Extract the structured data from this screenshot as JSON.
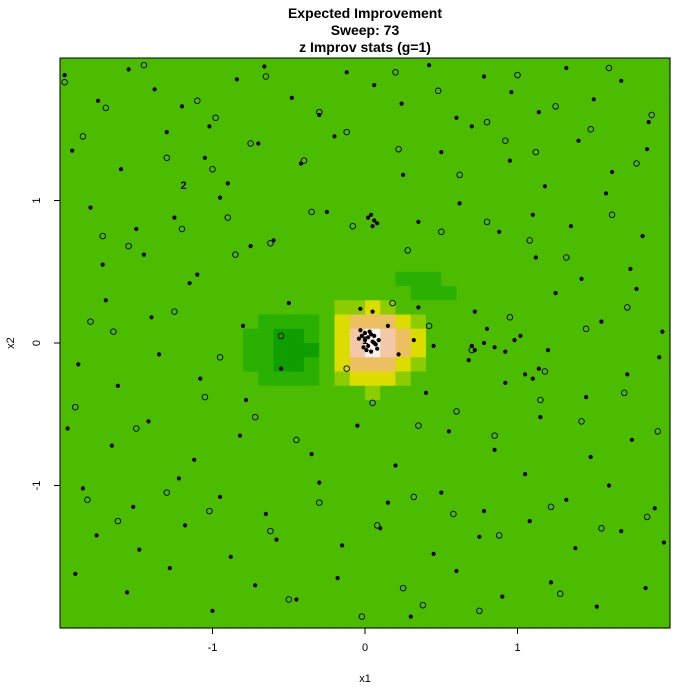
{
  "chart_data": {
    "type": "heatmap",
    "title": "Expected Improvement",
    "subtitle_lines": [
      "Sweep: 73",
      "z Improv stats (g=1)"
    ],
    "xlabel": "x1",
    "ylabel": "x2",
    "xlim": [
      -2,
      2
    ],
    "ylim": [
      -2,
      2
    ],
    "x_ticks": [
      -1,
      0,
      1
    ],
    "y_ticks": [
      -1,
      0,
      1
    ],
    "x_tick_labels": [
      "-1",
      "0",
      "1"
    ],
    "y_tick_labels": [
      "-1",
      "0",
      "1"
    ],
    "grid": false,
    "legend": "none",
    "colors": {
      "background_level": "#4cbc00",
      "low_level": "#0e9e00",
      "mid_low": "#2ab000",
      "mid": "#8ccc00",
      "yellow": "#dcdc00",
      "orange": "#ecc060",
      "peach": "#f2c8a8",
      "peak": "#fbf2ee"
    },
    "surface_features": [
      {
        "kind": "peak",
        "center": [
          0.05,
          0.0
        ],
        "spread": [
          0.18,
          0.16
        ],
        "level": 1.0
      },
      {
        "kind": "dip",
        "center": [
          -0.45,
          -0.05
        ],
        "spread": [
          0.2,
          0.15
        ],
        "level": -0.45
      },
      {
        "kind": "shoulder",
        "center": [
          0.35,
          0.35
        ],
        "spread": [
          0.3,
          0.15
        ],
        "level": -0.15
      }
    ],
    "point_labels": [
      {
        "text": "2",
        "x": -1.19,
        "y": 1.11
      },
      {
        "text": "1",
        "x": 0.0,
        "y": 0.02
      }
    ],
    "filled_points": {
      "x": [
        -1.97,
        -1.75,
        -1.55,
        -1.38,
        -1.2,
        -1.02,
        -0.84,
        -0.66,
        -0.48,
        -0.3,
        -0.12,
        0.06,
        0.24,
        0.42,
        0.6,
        0.78,
        0.96,
        1.14,
        1.32,
        1.5,
        1.68,
        1.86,
        -1.92,
        -1.6,
        -1.3,
        -1.05,
        -0.9,
        -0.7,
        -0.42,
        -0.2,
        0.25,
        0.5,
        0.7,
        0.95,
        1.18,
        1.4,
        1.62,
        1.85,
        -1.8,
        -1.5,
        -1.25,
        -0.95,
        -0.6,
        -0.25,
        0.35,
        0.62,
        0.88,
        1.1,
        1.35,
        1.58,
        1.82,
        -1.7,
        -1.4,
        -1.15,
        -0.8,
        -0.5,
        0.45,
        0.72,
        1.02,
        1.25,
        1.55,
        1.78,
        1.95,
        -1.88,
        -1.62,
        -1.35,
        -1.08,
        -0.78,
        -0.55,
        0.4,
        0.68,
        0.92,
        1.2,
        1.45,
        1.72,
        1.93,
        -1.95,
        -1.66,
        -1.42,
        -1.12,
        -0.82,
        -0.35,
        -0.05,
        0.2,
        0.55,
        0.85,
        1.15,
        1.48,
        1.75,
        -1.85,
        -1.52,
        -1.22,
        -0.95,
        -0.65,
        -0.3,
        0.15,
        0.5,
        0.78,
        1.05,
        1.32,
        1.6,
        1.9,
        -1.76,
        -1.48,
        -1.18,
        -0.88,
        -0.58,
        -0.15,
        0.1,
        0.45,
        0.75,
        1.08,
        1.38,
        1.68,
        1.96,
        -1.9,
        -1.56,
        -1.28,
        -1.0,
        -0.72,
        -0.45,
        -0.18,
        0.3,
        0.6,
        0.9,
        1.22,
        1.52,
        1.84,
        -1.72,
        -1.45,
        -1.1,
        -0.75,
        0.05,
        0.35,
        0.8,
        1.12,
        1.42,
        1.74,
        -0.02,
        0.0,
        0.02,
        0.04,
        0.06,
        0.08,
        -0.04,
        0.01,
        0.03,
        0.05,
        -0.01,
        0.02,
        0.0,
        0.07,
        0.04,
        -0.03,
        0.09,
        0.06,
        1.05,
        1.1,
        1.14,
        0.7,
        0.72,
        0.78,
        0.85,
        0.92,
        0.98,
        0.02,
        0.04,
        0.06,
        -0.03,
        0.08,
        0.05,
        0.32,
        0.15,
        0.22
      ],
      "y": [
        1.88,
        1.7,
        1.92,
        1.78,
        1.66,
        1.52,
        1.85,
        1.94,
        1.72,
        1.6,
        1.9,
        1.81,
        1.68,
        1.95,
        1.58,
        1.87,
        1.76,
        1.62,
        1.93,
        1.71,
        1.84,
        1.55,
        1.35,
        1.22,
        1.48,
        1.3,
        1.12,
        1.4,
        1.26,
        1.45,
        1.18,
        1.34,
        1.52,
        1.28,
        1.1,
        1.42,
        1.2,
        1.36,
        0.95,
        0.8,
        0.88,
        1.02,
        0.72,
        0.92,
        0.85,
        0.98,
        0.78,
        0.9,
        0.82,
        1.05,
        0.75,
        0.3,
        0.18,
        0.42,
        0.12,
        0.28,
        -0.02,
        0.22,
        0.05,
        0.35,
        0.15,
        0.38,
        0.08,
        -0.15,
        -0.3,
        -0.08,
        -0.25,
        -0.4,
        -0.18,
        -0.35,
        -0.12,
        -0.28,
        -0.05,
        -0.38,
        -0.22,
        -0.1,
        -0.6,
        -0.72,
        -0.55,
        -0.82,
        -0.65,
        -0.78,
        -0.58,
        -0.86,
        -0.62,
        -0.75,
        -0.52,
        -0.8,
        -0.68,
        -1.02,
        -1.15,
        -0.95,
        -1.08,
        -1.2,
        -0.98,
        -1.12,
        -1.05,
        -1.18,
        -0.92,
        -1.1,
        -1.0,
        -1.16,
        -1.35,
        -1.45,
        -1.28,
        -1.5,
        -1.38,
        -1.42,
        -1.3,
        -1.48,
        -1.36,
        -1.25,
        -1.44,
        -1.32,
        -1.4,
        -1.62,
        -1.75,
        -1.58,
        -1.88,
        -1.7,
        -1.8,
        -1.65,
        -1.92,
        -1.6,
        -1.78,
        -1.68,
        -1.85,
        -1.72,
        0.55,
        0.62,
        0.48,
        0.68,
        0.22,
        0.25,
        0.1,
        0.6,
        0.45,
        0.52,
        0.05,
        0.02,
        -0.02,
        0.06,
        0.0,
        -0.04,
        0.03,
        -0.05,
        0.08,
        0.01,
        -0.03,
        0.04,
        0.07,
        -0.01,
        -0.06,
        0.09,
        0.02,
        0.05,
        -0.22,
        -0.25,
        -0.18,
        -0.02,
        -0.05,
        0.0,
        -0.03,
        -0.06,
        0.02,
        0.88,
        0.9,
        0.86,
        0.24,
        0.84,
        0.82,
        0.02,
        0.12,
        -0.08
      ]
    },
    "open_points": {
      "x": [
        -1.97,
        -1.7,
        -1.45,
        -1.1,
        -0.98,
        -0.65,
        -0.3,
        0.2,
        0.48,
        0.8,
        1.0,
        1.25,
        1.6,
        1.88,
        -1.85,
        -1.3,
        -1.0,
        -0.75,
        -0.4,
        -0.12,
        0.22,
        0.62,
        0.92,
        1.12,
        1.48,
        1.78,
        -1.72,
        -1.55,
        -1.2,
        -0.9,
        -0.85,
        -0.62,
        -0.35,
        -0.08,
        0.28,
        0.5,
        0.8,
        1.08,
        1.32,
        1.62,
        -1.8,
        -1.65,
        -1.25,
        -0.95,
        -0.55,
        -0.12,
        0.18,
        0.42,
        0.7,
        0.95,
        1.18,
        1.45,
        1.72,
        -1.9,
        -1.5,
        -1.05,
        -0.72,
        -0.45,
        0.05,
        0.35,
        0.6,
        0.85,
        1.15,
        1.42,
        1.7,
        1.92,
        -1.82,
        -1.62,
        -1.3,
        -1.02,
        -0.62,
        -0.3,
        0.08,
        0.32,
        0.58,
        0.88,
        1.22,
        1.55,
        1.85,
        -0.5,
        0.25,
        0.75,
        1.28,
        -0.02,
        0.38
      ],
      "y": [
        1.83,
        1.65,
        1.95,
        1.7,
        1.58,
        1.87,
        1.62,
        1.9,
        1.77,
        1.55,
        1.88,
        1.66,
        1.93,
        1.6,
        1.45,
        1.3,
        1.22,
        1.4,
        1.28,
        1.48,
        1.36,
        1.18,
        1.42,
        1.34,
        1.5,
        1.26,
        0.75,
        0.68,
        0.8,
        0.88,
        0.62,
        0.7,
        0.92,
        0.82,
        0.65,
        0.78,
        0.85,
        0.72,
        0.6,
        0.9,
        0.15,
        0.08,
        0.22,
        -0.1,
        0.05,
        -0.18,
        0.28,
        0.12,
        -0.05,
        0.18,
        -0.2,
        0.1,
        0.25,
        -0.45,
        -0.6,
        -0.38,
        -0.52,
        -0.68,
        -0.42,
        -0.58,
        -0.48,
        -0.65,
        -0.4,
        -0.55,
        -0.35,
        -0.62,
        -1.1,
        -1.25,
        -1.05,
        -1.18,
        -1.32,
        -1.12,
        -1.28,
        -1.08,
        -1.2,
        -1.35,
        -1.15,
        -1.3,
        -1.22,
        -1.8,
        -1.72,
        -1.88,
        -1.76,
        -1.92,
        -1.84
      ]
    }
  }
}
